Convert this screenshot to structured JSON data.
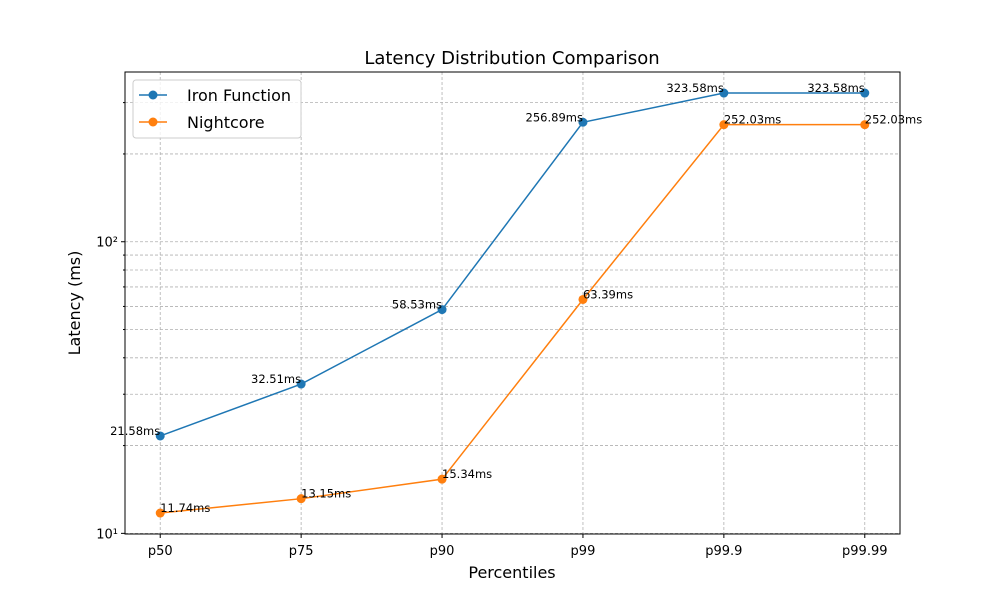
{
  "chart_data": {
    "type": "line",
    "title": "Latency Distribution Comparison",
    "x_label": "Percentiles",
    "y_label": "Latency (ms)",
    "categories": [
      "p50",
      "p75",
      "p90",
      "p99",
      "p99.9",
      "p99.99"
    ],
    "series": [
      {
        "name": "Iron Function",
        "color": "#1f77b4",
        "values": [
          21.58,
          32.51,
          58.53,
          256.89,
          323.58,
          323.58
        ],
        "value_labels": [
          "21.58ms",
          "32.51ms",
          "58.53ms",
          "256.89ms",
          "323.58ms",
          "323.58ms"
        ]
      },
      {
        "name": "Nightcore",
        "color": "#ff7f0e",
        "values": [
          11.74,
          13.15,
          15.34,
          63.39,
          252.03,
          252.03
        ],
        "value_labels": [
          "11.74ms",
          "13.15ms",
          "15.34ms",
          "63.39ms",
          "252.03ms",
          "252.03ms"
        ]
      }
    ],
    "y_scale": "log",
    "ylim": [
      9.95,
      382
    ],
    "yticks": [
      {
        "value": 10,
        "label": "10¹"
      },
      {
        "value": 100,
        "label": "10²"
      }
    ],
    "yticks_minor": [
      20,
      30,
      40,
      50,
      60,
      70,
      80,
      90,
      200,
      300
    ],
    "grid": true,
    "legend": "upper left"
  }
}
